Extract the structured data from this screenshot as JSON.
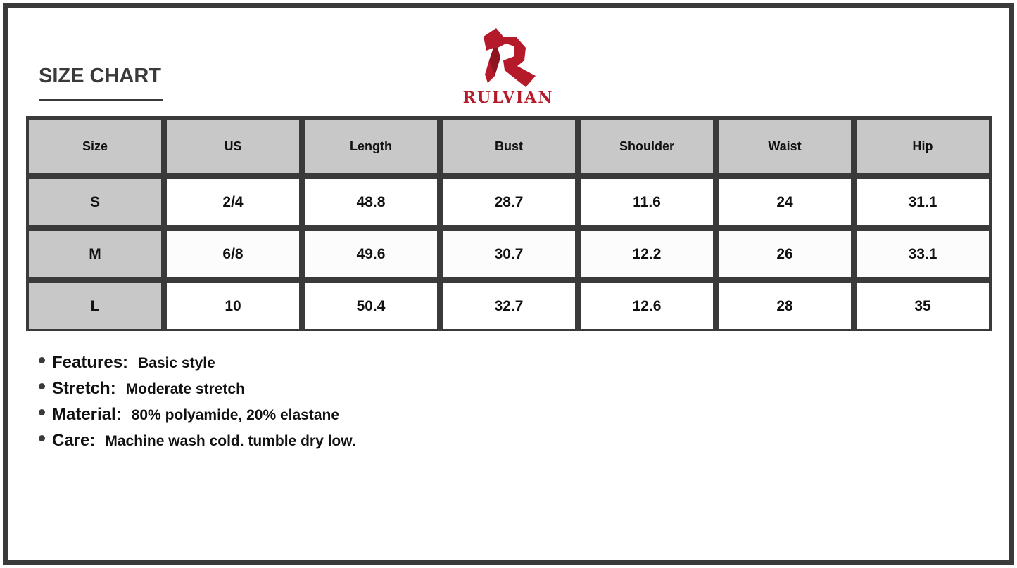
{
  "title": "SIZE CHART",
  "brand": {
    "name": "RULVIAN",
    "color": "#b51a2a"
  },
  "table": {
    "headers": [
      "Size",
      "US",
      "Length",
      "Bust",
      "Shoulder",
      "Waist",
      "Hip"
    ],
    "rows": [
      [
        "S",
        "2/4",
        "48.8",
        "28.7",
        "11.6",
        "24",
        "31.1"
      ],
      [
        "M",
        "6/8",
        "49.6",
        "30.7",
        "12.2",
        "26",
        "33.1"
      ],
      [
        "L",
        "10",
        "50.4",
        "32.7",
        "12.6",
        "28",
        "35"
      ]
    ]
  },
  "features": [
    {
      "label": "Features:",
      "value": "Basic style"
    },
    {
      "label": "Stretch:",
      "value": "Moderate stretch"
    },
    {
      "label": "Material:",
      "value": "80% polyamide, 20% elastane"
    },
    {
      "label": "Care:",
      "value": "Machine wash cold. tumble dry low."
    }
  ]
}
